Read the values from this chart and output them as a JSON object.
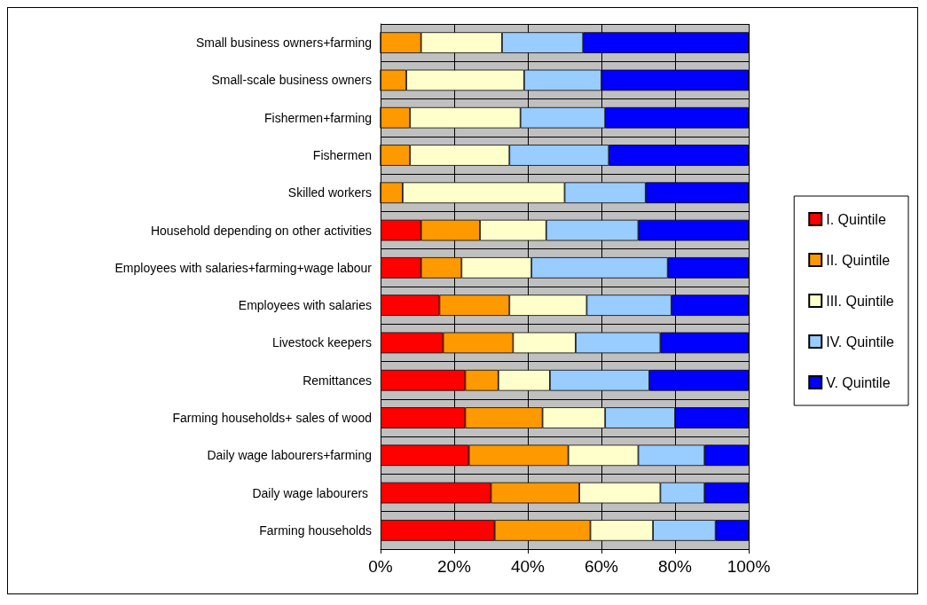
{
  "chart_data": {
    "type": "bar",
    "orientation": "horizontal",
    "stacked": true,
    "grid": true,
    "legend": "right",
    "categories": [
      "Small business owners+farming",
      "Small-scale business owners",
      "Fishermen+farming",
      "Fishermen",
      "Skilled workers",
      "Household depending on other activities",
      "Employees with salaries+farming+wage labour",
      "Employees with salaries",
      "Livestock keepers",
      "Remittances",
      "Farming households+ sales of wood",
      "Daily wage labourers+farming",
      "Daily wage labourers ",
      "Farming households"
    ],
    "xlim": [
      0,
      100
    ],
    "xticks": [
      {
        "value": 0,
        "label": "0%"
      },
      {
        "value": 20,
        "label": "20%"
      },
      {
        "value": 40,
        "label": "40%"
      },
      {
        "value": 60,
        "label": "60%"
      },
      {
        "value": 80,
        "label": "80%"
      },
      {
        "value": 100,
        "label": "100%"
      }
    ],
    "series": [
      {
        "name": "I. Quintile",
        "color": "#ff0000",
        "values": [
          0,
          0,
          0,
          0,
          0,
          11,
          11,
          16,
          17,
          23,
          23,
          24,
          30,
          31
        ]
      },
      {
        "name": "II. Quintile",
        "color": "#ff9900",
        "values": [
          11,
          7,
          8,
          8,
          6,
          16,
          11,
          19,
          19,
          9,
          21,
          27,
          24,
          26
        ]
      },
      {
        "name": "III. Quintile",
        "color": "#ffffcc",
        "values": [
          22,
          32,
          30,
          27,
          44,
          18,
          19,
          21,
          17,
          14,
          17,
          19,
          22,
          17
        ]
      },
      {
        "name": "IV. Quintile",
        "color": "#99ccff",
        "values": [
          22,
          21,
          23,
          27,
          22,
          25,
          37,
          23,
          23,
          27,
          19,
          18,
          12,
          17
        ]
      },
      {
        "name": "V. Quintile",
        "color": "#0000ff",
        "values": [
          45,
          40,
          39,
          38,
          28,
          30,
          22,
          21,
          24,
          27,
          20,
          12,
          12,
          9
        ]
      }
    ]
  }
}
